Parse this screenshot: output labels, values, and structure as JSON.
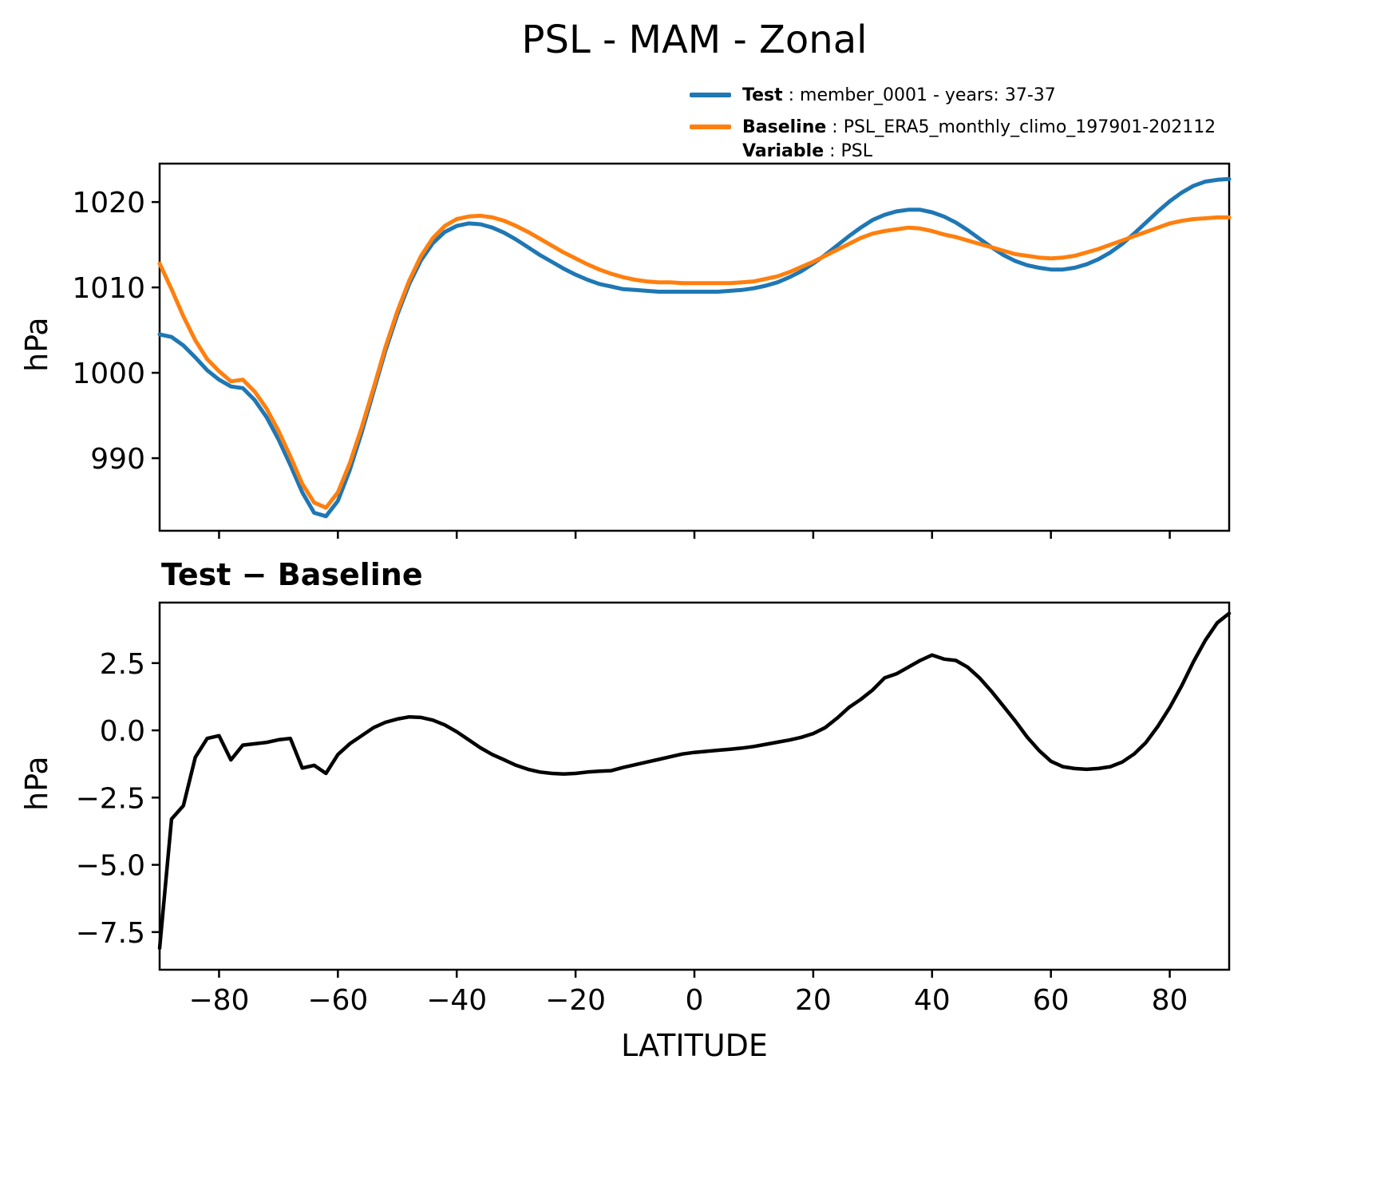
{
  "title": "PSL - MAM - Zonal",
  "legend": {
    "separator": " : ",
    "items": [
      {
        "label": "Test",
        "value": "member_0001 - years: 37-37",
        "color": "#1f77b4"
      },
      {
        "label": "Baseline",
        "value": "PSL_ERA5_monthly_climo_197901-202112",
        "color": "#ff7f0e"
      },
      {
        "label": "Variable",
        "value": "PSL",
        "color": null
      }
    ]
  },
  "chart_data": [
    {
      "type": "line",
      "panel": "top",
      "ylabel": "hPa",
      "ylim": [
        981.5,
        1024.5
      ],
      "xlim": [
        -90,
        90
      ],
      "yticks": [
        990,
        1000,
        1010,
        1020
      ],
      "ytick_labels": [
        "990",
        "1000",
        "1010",
        "1020"
      ],
      "xticks": [
        -80,
        -60,
        -40,
        -20,
        0,
        20,
        40,
        60,
        80
      ],
      "xtick_labels": null,
      "grid": false,
      "x": [
        -90,
        -88,
        -86,
        -84,
        -82,
        -80,
        -78,
        -76,
        -74,
        -72,
        -70,
        -68,
        -66,
        -64,
        -62,
        -60,
        -58,
        -56,
        -54,
        -52,
        -50,
        -48,
        -46,
        -44,
        -42,
        -40,
        -38,
        -36,
        -34,
        -32,
        -30,
        -28,
        -26,
        -24,
        -22,
        -20,
        -18,
        -16,
        -14,
        -12,
        -10,
        -8,
        -6,
        -4,
        -2,
        0,
        2,
        4,
        6,
        8,
        10,
        12,
        14,
        16,
        18,
        20,
        22,
        24,
        26,
        28,
        30,
        32,
        34,
        36,
        38,
        40,
        42,
        44,
        46,
        48,
        50,
        52,
        54,
        56,
        58,
        60,
        62,
        64,
        66,
        68,
        70,
        72,
        74,
        76,
        78,
        80,
        82,
        84,
        86,
        88,
        90
      ],
      "series": [
        {
          "name": "Test",
          "color": "#1f77b4",
          "values": [
            1004.5,
            1004.2,
            1003.2,
            1001.8,
            1000.3,
            999.2,
            998.4,
            998.2,
            996.8,
            994.8,
            992.2,
            989.2,
            986.0,
            983.6,
            983.2,
            985.0,
            988.6,
            993.0,
            997.8,
            1002.6,
            1006.8,
            1010.4,
            1013.2,
            1015.2,
            1016.5,
            1017.2,
            1017.5,
            1017.4,
            1017.0,
            1016.4,
            1015.6,
            1014.7,
            1013.8,
            1013.0,
            1012.2,
            1011.5,
            1010.9,
            1010.4,
            1010.1,
            1009.8,
            1009.7,
            1009.6,
            1009.5,
            1009.5,
            1009.5,
            1009.5,
            1009.5,
            1009.5,
            1009.6,
            1009.7,
            1009.9,
            1010.2,
            1010.6,
            1011.2,
            1011.9,
            1012.8,
            1013.8,
            1014.9,
            1016.0,
            1017.0,
            1017.9,
            1018.5,
            1018.9,
            1019.1,
            1019.1,
            1018.8,
            1018.3,
            1017.6,
            1016.7,
            1015.7,
            1014.7,
            1013.8,
            1013.1,
            1012.6,
            1012.3,
            1012.1,
            1012.1,
            1012.3,
            1012.7,
            1013.3,
            1014.1,
            1015.1,
            1016.3,
            1017.6,
            1018.9,
            1020.1,
            1021.1,
            1021.9,
            1022.4,
            1022.6,
            1022.7
          ]
        },
        {
          "name": "Baseline",
          "color": "#ff7f0e",
          "values": [
            1012.8,
            1009.8,
            1006.6,
            1003.8,
            1001.6,
            1000.2,
            999.0,
            999.2,
            997.8,
            995.8,
            993.2,
            990.2,
            987.0,
            984.8,
            984.2,
            986.0,
            989.4,
            993.6,
            998.2,
            1003.0,
            1007.2,
            1010.8,
            1013.7,
            1015.8,
            1017.2,
            1018.0,
            1018.3,
            1018.4,
            1018.2,
            1017.8,
            1017.2,
            1016.5,
            1015.7,
            1014.9,
            1014.1,
            1013.4,
            1012.7,
            1012.1,
            1011.6,
            1011.2,
            1010.9,
            1010.7,
            1010.6,
            1010.6,
            1010.5,
            1010.5,
            1010.5,
            1010.5,
            1010.5,
            1010.6,
            1010.7,
            1011.0,
            1011.3,
            1011.8,
            1012.4,
            1013.0,
            1013.7,
            1014.4,
            1015.1,
            1015.8,
            1016.3,
            1016.6,
            1016.8,
            1017.0,
            1016.9,
            1016.6,
            1016.2,
            1015.9,
            1015.5,
            1015.1,
            1014.7,
            1014.3,
            1013.9,
            1013.7,
            1013.5,
            1013.4,
            1013.5,
            1013.7,
            1014.1,
            1014.5,
            1015.0,
            1015.5,
            1016.0,
            1016.5,
            1017.0,
            1017.5,
            1017.8,
            1018.0,
            1018.1,
            1018.2,
            1018.2
          ]
        }
      ]
    },
    {
      "type": "line",
      "panel": "bottom",
      "title": "Test − Baseline",
      "ylabel": "hPa",
      "xlabel": "LATITUDE",
      "ylim": [
        -8.9,
        4.75
      ],
      "xlim": [
        -90,
        90
      ],
      "yticks": [
        -7.5,
        -5.0,
        -2.5,
        0.0,
        2.5
      ],
      "ytick_labels": [
        "−7.5",
        "−5.0",
        "−2.5",
        "0.0",
        "2.5"
      ],
      "xticks": [
        -80,
        -60,
        -40,
        -20,
        0,
        20,
        40,
        60,
        80
      ],
      "xtick_labels": [
        "−80",
        "−60",
        "−40",
        "−20",
        "0",
        "20",
        "40",
        "60",
        "80"
      ],
      "grid": false,
      "x": [
        -90,
        -88,
        -86,
        -84,
        -82,
        -80,
        -78,
        -76,
        -74,
        -72,
        -70,
        -68,
        -66,
        -64,
        -62,
        -60,
        -58,
        -56,
        -54,
        -52,
        -50,
        -48,
        -46,
        -44,
        -42,
        -40,
        -38,
        -36,
        -34,
        -32,
        -30,
        -28,
        -26,
        -24,
        -22,
        -20,
        -18,
        -16,
        -14,
        -12,
        -10,
        -8,
        -6,
        -4,
        -2,
        0,
        2,
        4,
        6,
        8,
        10,
        12,
        14,
        16,
        18,
        20,
        22,
        24,
        26,
        28,
        30,
        32,
        34,
        36,
        38,
        40,
        42,
        44,
        46,
        48,
        50,
        52,
        54,
        56,
        58,
        60,
        62,
        64,
        66,
        68,
        70,
        72,
        74,
        76,
        78,
        80,
        82,
        84,
        86,
        88,
        90
      ],
      "series": [
        {
          "name": "Test − Baseline",
          "color": "#000000",
          "values": [
            -8.1,
            -3.3,
            -2.8,
            -1.0,
            -0.3,
            -0.2,
            -1.1,
            -0.55,
            -0.5,
            -0.45,
            -0.35,
            -0.3,
            -1.4,
            -1.3,
            -1.6,
            -0.9,
            -0.5,
            -0.2,
            0.1,
            0.3,
            0.42,
            0.5,
            0.48,
            0.38,
            0.2,
            -0.05,
            -0.35,
            -0.65,
            -0.9,
            -1.1,
            -1.3,
            -1.45,
            -1.55,
            -1.6,
            -1.62,
            -1.6,
            -1.55,
            -1.52,
            -1.5,
            -1.38,
            -1.28,
            -1.18,
            -1.08,
            -0.98,
            -0.88,
            -0.82,
            -0.78,
            -0.74,
            -0.7,
            -0.66,
            -0.6,
            -0.52,
            -0.44,
            -0.36,
            -0.26,
            -0.12,
            0.1,
            0.45,
            0.85,
            1.15,
            1.5,
            1.95,
            2.1,
            2.35,
            2.6,
            2.8,
            2.65,
            2.6,
            2.35,
            1.95,
            1.45,
            0.9,
            0.35,
            -0.25,
            -0.75,
            -1.15,
            -1.35,
            -1.42,
            -1.45,
            -1.42,
            -1.35,
            -1.18,
            -0.88,
            -0.45,
            0.15,
            0.85,
            1.65,
            2.55,
            3.35,
            4.0,
            4.35
          ]
        }
      ]
    }
  ]
}
